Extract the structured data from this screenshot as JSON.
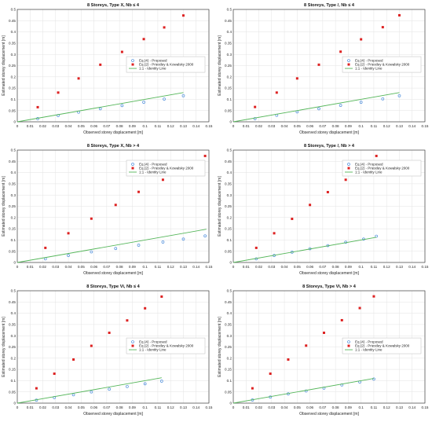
{
  "colors": {
    "proposed": "#4f8fdc",
    "priestley": "#dd2222",
    "identity": "#55b65a",
    "grid": "#e3e3e3",
    "axis": "#262626"
  },
  "legend": {
    "proposed": "Eq.(4) - Proposed",
    "priestley": "Eq.(2) - Priestley & Kowalsky 2000",
    "identity": "1:1 - Identity Line"
  },
  "chart_data": [
    {
      "type": "scatter",
      "title": "8 Storeys, Type X, Nb ≤ 4",
      "xlabel": "Observed storey displacement [m]",
      "ylabel": "Estimated storey displacement [m]",
      "xlim": [
        0,
        0.15
      ],
      "ylim": [
        0,
        0.5
      ],
      "xticks": [
        "0",
        "0.01",
        "0.02",
        "0.03",
        "0.04",
        "0.05",
        "0.06",
        "0.07",
        "0.08",
        "0.09",
        "0.1",
        "0.11",
        "0.12",
        "0.13",
        "0.14",
        "0.15"
      ],
      "yticks": [
        "0",
        "0.05",
        "0.1",
        "0.15",
        "0.2",
        "0.25",
        "0.3",
        "0.35",
        "0.4",
        "0.45",
        "0.5"
      ],
      "grid": true,
      "legend_position": "center-right",
      "series": [
        {
          "name": "Eq.(4) - Proposed",
          "marker": "circle",
          "x": [
            0.016,
            0.032,
            0.048,
            0.065,
            0.082,
            0.099,
            0.115,
            0.13
          ],
          "y": [
            0.014,
            0.028,
            0.043,
            0.058,
            0.072,
            0.087,
            0.101,
            0.116
          ]
        },
        {
          "name": "Eq.(2) - Priestley & Kowalsky 2000",
          "marker": "square",
          "x": [
            0.016,
            0.032,
            0.048,
            0.065,
            0.082,
            0.099,
            0.115,
            0.13
          ],
          "y": [
            0.065,
            0.13,
            0.193,
            0.254,
            0.311,
            0.368,
            0.42,
            0.473
          ]
        },
        {
          "name": "1:1 - Identity Line",
          "marker": "line",
          "x": [
            0,
            0.13
          ],
          "y": [
            0,
            0.13
          ]
        }
      ]
    },
    {
      "type": "scatter",
      "title": "8 Storeys, Type /, Nb ≤ 4",
      "xlabel": "Observed storey displacement [m]",
      "ylabel": "Estimated storey displacement [m]",
      "xlim": [
        0,
        0.15
      ],
      "ylim": [
        0,
        0.5
      ],
      "xticks": [
        "0",
        "0.01",
        "0.02",
        "0.03",
        "0.04",
        "0.05",
        "0.06",
        "0.07",
        "0.08",
        "0.09",
        "0.1",
        "0.11",
        "0.12",
        "0.13",
        "0.14",
        "0.15"
      ],
      "yticks": [
        "0",
        "0.05",
        "0.1",
        "0.15",
        "0.2",
        "0.25",
        "0.3",
        "0.35",
        "0.4",
        "0.45",
        "0.5"
      ],
      "grid": true,
      "legend_position": "center-right",
      "series": [
        {
          "name": "Eq.(4) - Proposed",
          "marker": "circle",
          "x": [
            0.017,
            0.034,
            0.05,
            0.067,
            0.084,
            0.1,
            0.117,
            0.13
          ],
          "y": [
            0.014,
            0.029,
            0.044,
            0.058,
            0.073,
            0.087,
            0.102,
            0.116
          ]
        },
        {
          "name": "Eq.(2) - Priestley & Kowalsky 2000",
          "marker": "square",
          "x": [
            0.017,
            0.034,
            0.05,
            0.067,
            0.084,
            0.1,
            0.117,
            0.13
          ],
          "y": [
            0.066,
            0.13,
            0.193,
            0.254,
            0.312,
            0.367,
            0.421,
            0.474
          ]
        },
        {
          "name": "1:1 - Identity Line",
          "marker": "line",
          "x": [
            0,
            0.13
          ],
          "y": [
            0,
            0.13
          ]
        }
      ]
    },
    {
      "type": "scatter",
      "title": "8 Storeys, Type X, Nb > 4",
      "xlabel": "Observed storey displacement [m]",
      "ylabel": "Estimated storey displacement [m]",
      "xlim": [
        0,
        0.15
      ],
      "ylim": [
        0,
        0.5
      ],
      "xticks": [
        "0",
        "0.01",
        "0.02",
        "0.03",
        "0.04",
        "0.05",
        "0.06",
        "0.07",
        "0.08",
        "0.09",
        "0.1",
        "0.11",
        "0.12",
        "0.13",
        "0.14",
        "0.15"
      ],
      "yticks": [
        "0",
        "0.05",
        "0.1",
        "0.15",
        "0.2",
        "0.25",
        "0.3",
        "0.35",
        "0.4",
        "0.45",
        "0.5"
      ],
      "grid": true,
      "legend_position": "top-right",
      "series": [
        {
          "name": "Eq.(4) - Proposed",
          "marker": "circle",
          "x": [
            0.022,
            0.04,
            0.058,
            0.077,
            0.095,
            0.114,
            0.13,
            0.147
          ],
          "y": [
            0.016,
            0.031,
            0.047,
            0.062,
            0.077,
            0.091,
            0.104,
            0.118
          ]
        },
        {
          "name": "Eq.(2) - Priestley & Kowalsky 2000",
          "marker": "square",
          "x": [
            0.022,
            0.04,
            0.058,
            0.077,
            0.095,
            0.114,
            0.13,
            0.147
          ],
          "y": [
            0.065,
            0.13,
            0.195,
            0.256,
            0.314,
            0.368,
            0.423,
            0.474
          ]
        },
        {
          "name": "1:1 - Identity Line",
          "marker": "line",
          "x": [
            0,
            0.148
          ],
          "y": [
            0,
            0.148
          ]
        }
      ]
    },
    {
      "type": "scatter",
      "title": "8 Storeys, Type /, Nb > 4",
      "xlabel": "Observed storey displacement [m]",
      "ylabel": "Estimated storey displacement [m]",
      "xlim": [
        0,
        0.15
      ],
      "ylim": [
        0,
        0.5
      ],
      "xticks": [
        "0",
        "0.01",
        "0.02",
        "0.03",
        "0.04",
        "0.05",
        "0.06",
        "0.07",
        "0.08",
        "0.09",
        "0.1",
        "0.11",
        "0.12",
        "0.13",
        "0.14",
        "0.15"
      ],
      "yticks": [
        "0",
        "0.05",
        "0.1",
        "0.15",
        "0.2",
        "0.25",
        "0.3",
        "0.35",
        "0.4",
        "0.45",
        "0.5"
      ],
      "grid": true,
      "legend_position": "top-right",
      "series": [
        {
          "name": "Eq.(4) - Proposed",
          "marker": "circle",
          "x": [
            0.018,
            0.032,
            0.046,
            0.06,
            0.074,
            0.088,
            0.102,
            0.112
          ],
          "y": [
            0.016,
            0.031,
            0.046,
            0.061,
            0.075,
            0.09,
            0.104,
            0.117
          ]
        },
        {
          "name": "Eq.(2) - Priestley & Kowalsky 2000",
          "marker": "square",
          "x": [
            0.018,
            0.032,
            0.046,
            0.06,
            0.074,
            0.088,
            0.102,
            0.112
          ],
          "y": [
            0.065,
            0.13,
            0.194,
            0.256,
            0.313,
            0.368,
            0.423,
            0.474
          ]
        },
        {
          "name": "1:1 - Identity Line",
          "marker": "line",
          "x": [
            0,
            0.112
          ],
          "y": [
            0,
            0.112
          ]
        }
      ]
    },
    {
      "type": "scatter",
      "title": "8 Storeys, Type Vi, Nb ≤ 4",
      "xlabel": "Observed storey displacement [m]",
      "ylabel": "Estimated storey displacement [m]",
      "xlim": [
        0,
        0.15
      ],
      "ylim": [
        0,
        0.5
      ],
      "xticks": [
        "0",
        "0.01",
        "0.02",
        "0.03",
        "0.04",
        "0.05",
        "0.06",
        "0.07",
        "0.08",
        "0.09",
        "0.1",
        "0.11",
        "0.12",
        "0.13",
        "0.14",
        "0.15"
      ],
      "yticks": [
        "0",
        "0.05",
        "0.1",
        "0.15",
        "0.2",
        "0.25",
        "0.3",
        "0.35",
        "0.4",
        "0.45",
        "0.5"
      ],
      "grid": true,
      "legend_position": "center-right",
      "series": [
        {
          "name": "Eq.(4) - Proposed",
          "marker": "circle",
          "x": [
            0.015,
            0.029,
            0.044,
            0.058,
            0.072,
            0.086,
            0.1,
            0.113
          ],
          "y": [
            0.013,
            0.025,
            0.037,
            0.05,
            0.062,
            0.074,
            0.086,
            0.098
          ]
        },
        {
          "name": "Eq.(2) - Priestley & Kowalsky 2000",
          "marker": "square",
          "x": [
            0.015,
            0.029,
            0.044,
            0.058,
            0.072,
            0.086,
            0.1,
            0.113
          ],
          "y": [
            0.066,
            0.131,
            0.194,
            0.255,
            0.313,
            0.368,
            0.422,
            0.474
          ]
        },
        {
          "name": "1:1 - Identity Line",
          "marker": "line",
          "x": [
            0,
            0.113
          ],
          "y": [
            0,
            0.113
          ]
        }
      ]
    },
    {
      "type": "scatter",
      "title": "8 Storeys, Type Vi, Nb > 4",
      "xlabel": "Observed storey displacement [m]",
      "ylabel": "Estimated storey displacement [m]",
      "xlim": [
        0,
        0.15
      ],
      "ylim": [
        0,
        0.5
      ],
      "xticks": [
        "0",
        "0.01",
        "0.02",
        "0.03",
        "0.04",
        "0.05",
        "0.06",
        "0.07",
        "0.08",
        "0.09",
        "0.1",
        "0.11",
        "0.12",
        "0.13",
        "0.14",
        "0.15"
      ],
      "yticks": [
        "0",
        "0.05",
        "0.1",
        "0.15",
        "0.2",
        "0.25",
        "0.3",
        "0.35",
        "0.4",
        "0.45",
        "0.5"
      ],
      "grid": true,
      "legend_position": "center-right",
      "series": [
        {
          "name": "Eq.(4) - Proposed",
          "marker": "circle",
          "x": [
            0.015,
            0.029,
            0.043,
            0.057,
            0.071,
            0.085,
            0.099,
            0.11
          ],
          "y": [
            0.014,
            0.027,
            0.041,
            0.054,
            0.067,
            0.081,
            0.094,
            0.107
          ]
        },
        {
          "name": "Eq.(2) - Priestley & Kowalsky 2000",
          "marker": "square",
          "x": [
            0.015,
            0.029,
            0.043,
            0.057,
            0.071,
            0.085,
            0.099,
            0.11
          ],
          "y": [
            0.066,
            0.131,
            0.194,
            0.256,
            0.313,
            0.369,
            0.423,
            0.475
          ]
        },
        {
          "name": "1:1 - Identity Line",
          "marker": "line",
          "x": [
            0,
            0.11
          ],
          "y": [
            0,
            0.11
          ]
        }
      ]
    }
  ]
}
